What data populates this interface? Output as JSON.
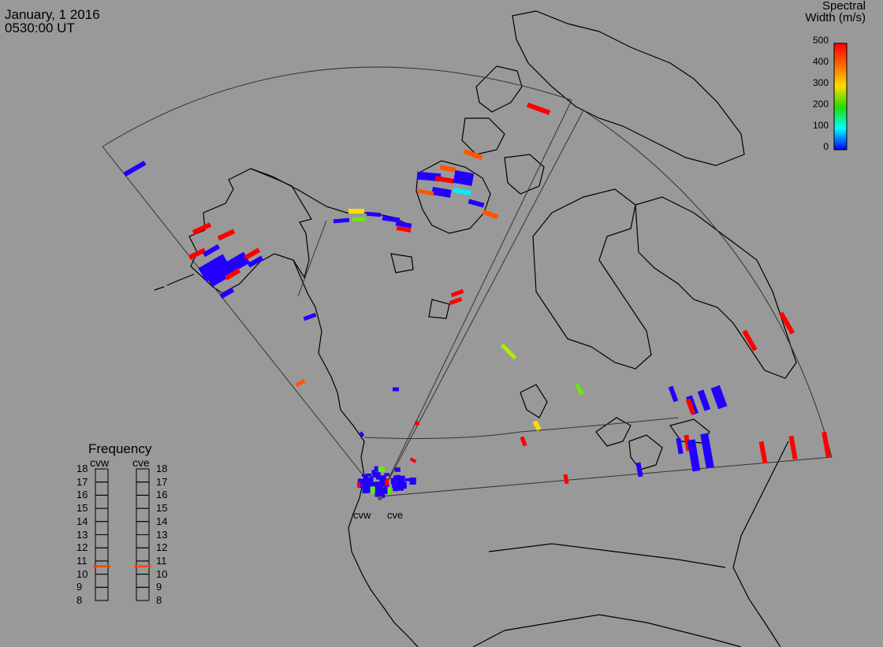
{
  "header": {
    "date": "January, 1 2016",
    "time": "0530:00 UT"
  },
  "colorbar": {
    "title_line1": "Spectral",
    "title_line2": "Width (m/s)",
    "ticks": [
      "500",
      "400",
      "300",
      "200",
      "100",
      "0"
    ],
    "colors": [
      "#ff0000",
      "#ff6600",
      "#ffdd00",
      "#22dd00",
      "#00ffff",
      "#0000ff"
    ]
  },
  "frequency": {
    "title": "Frequency",
    "radars": [
      "cvw",
      "cve"
    ],
    "scale": [
      "18",
      "17",
      "16",
      "15",
      "14",
      "13",
      "12",
      "11",
      "10",
      "9",
      "8"
    ],
    "current": {
      "cvw": 10.6,
      "cve": 10.6
    }
  },
  "radar_sites": [
    "cvw",
    "cve"
  ]
}
